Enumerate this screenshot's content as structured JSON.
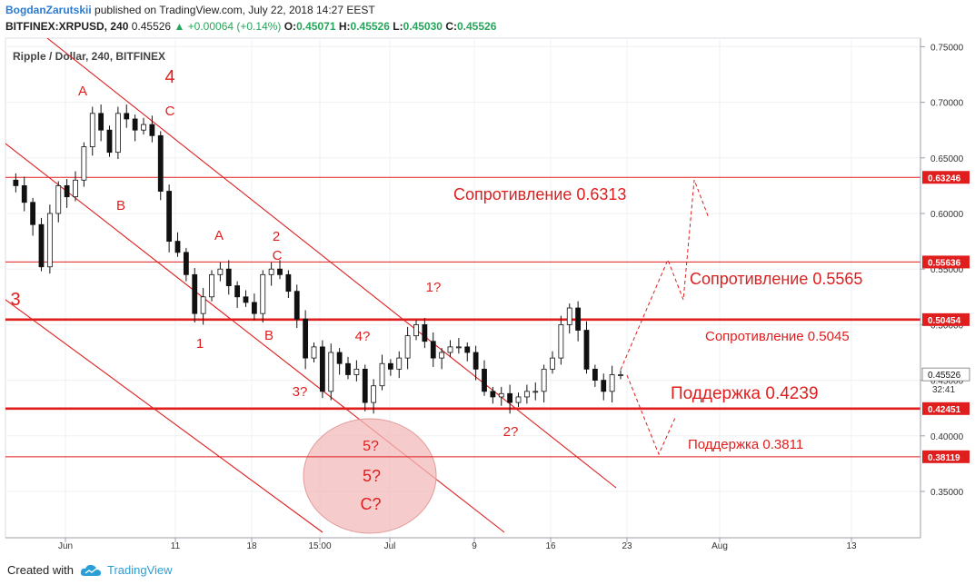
{
  "header": {
    "author": "BogdanZarutskii",
    "published": "published on TradingView.com, July 22, 2018 14:27 EEST",
    "symbol": "BITFINEX:XRPUSD, 240",
    "last": "0.45526",
    "change": "▲ +0.00064 (+0.14%)",
    "o_label": "O:",
    "o_value": "0.45071",
    "h_label": "H:",
    "h_value": "0.45526",
    "l_label": "L:",
    "l_value": "0.45030",
    "c_label": "C:",
    "c_value": "0.45526"
  },
  "footer": {
    "created": "Created with",
    "brand": "TradingView",
    "brand_icon": "tradingview-cloud-icon"
  },
  "colors": {
    "annotation": "#e01e1e",
    "candles": "#111111",
    "up_text": "#26a65b",
    "ellipse_fill": "#f2b9b9",
    "brand": "#2a9fd6"
  },
  "chart_data": {
    "type": "candlestick",
    "title": "Ripple / Dollar, 240, BITFINEX",
    "y_axis": {
      "range": [
        0.3,
        0.758
      ],
      "ticks": [
        "0.75000",
        "0.70000",
        "0.65000",
        "0.60000",
        "0.55000",
        "0.50000",
        "0.45000",
        "0.40000",
        "0.35000"
      ],
      "position": "right"
    },
    "x_axis": {
      "ticks": [
        "Jun",
        "11",
        "18",
        "15:00",
        "Jul",
        "9",
        "16",
        "23",
        "Aug",
        "13"
      ]
    },
    "price_tags": [
      {
        "value": 0.63246,
        "label": "0.63246"
      },
      {
        "value": 0.55636,
        "label": "0.55636"
      },
      {
        "value": 0.50454,
        "label": "0.50454"
      },
      {
        "value": 0.45526,
        "label": "0.45526",
        "style": "last"
      },
      {
        "value": 0.42451,
        "label": "0.42451"
      },
      {
        "value": 0.38119,
        "label": "0.38119"
      }
    ],
    "countdown": "32:41",
    "horizontal_lines": [
      {
        "value": 0.63246,
        "label": "Сопротивление 0.6313",
        "weight": "thin"
      },
      {
        "value": 0.55636,
        "label": "Сопротивление 0.5565",
        "weight": "thin"
      },
      {
        "value": 0.50454,
        "label": "Сопротивление 0.5045",
        "weight": "thick"
      },
      {
        "value": 0.42451,
        "label": "Поддержка 0.4239",
        "weight": "thick"
      },
      {
        "value": 0.38119,
        "label": "Поддержка 0.3811",
        "weight": "thin"
      }
    ],
    "wave_labels": [
      "3",
      "4",
      "A",
      "B",
      "C",
      "A",
      "B",
      "C",
      "1",
      "2",
      "3?",
      "4?",
      "1?",
      "2?",
      "5?",
      "5?",
      "C?"
    ],
    "price_path": [
      0.63,
      0.625,
      0.61,
      0.59,
      0.552,
      0.6,
      0.625,
      0.615,
      0.63,
      0.66,
      0.69,
      0.675,
      0.655,
      0.69,
      0.685,
      0.675,
      0.68,
      0.67,
      0.62,
      0.575,
      0.565,
      0.545,
      0.51,
      0.525,
      0.545,
      0.55,
      0.535,
      0.525,
      0.52,
      0.51,
      0.545,
      0.55,
      0.545,
      0.53,
      0.505,
      0.47,
      0.48,
      0.44,
      0.475,
      0.465,
      0.455,
      0.46,
      0.43,
      0.445,
      0.465,
      0.46,
      0.47,
      0.49,
      0.5,
      0.485,
      0.47,
      0.475,
      0.48,
      0.48,
      0.475,
      0.46,
      0.44,
      0.435,
      0.438,
      0.43,
      0.435,
      0.44,
      0.44,
      0.46,
      0.47,
      0.5,
      0.515,
      0.495,
      0.46,
      0.45,
      0.44,
      0.455,
      0.455
    ]
  }
}
